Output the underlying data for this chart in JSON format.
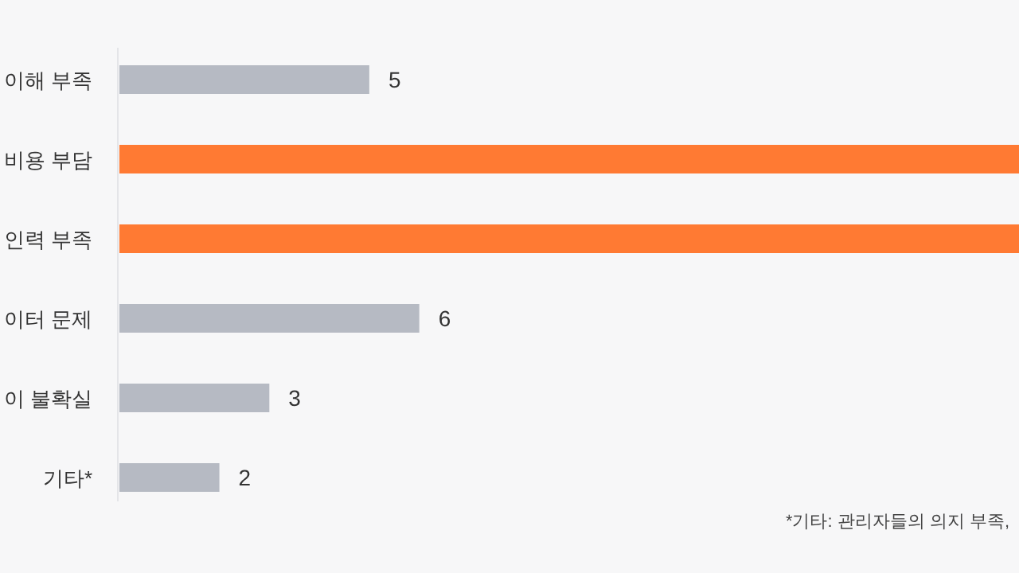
{
  "chart_data": {
    "type": "bar",
    "orientation": "horizontal",
    "categories": [
      "이해 부족",
      "비용 부담",
      "인력 부족",
      "이터 문제",
      "이 불확실",
      "기타*"
    ],
    "values": [
      5,
      18,
      18,
      6,
      3,
      2
    ],
    "colors": [
      "#b6bac3",
      "#ff7a33",
      "#ff7a33",
      "#b6bac3",
      "#b6bac3",
      "#b6bac3"
    ],
    "value_labels": [
      "5",
      null,
      null,
      "6",
      "3",
      "2"
    ],
    "annotations": [
      "*기타: 관리자들의 의지 부족,"
    ]
  }
}
